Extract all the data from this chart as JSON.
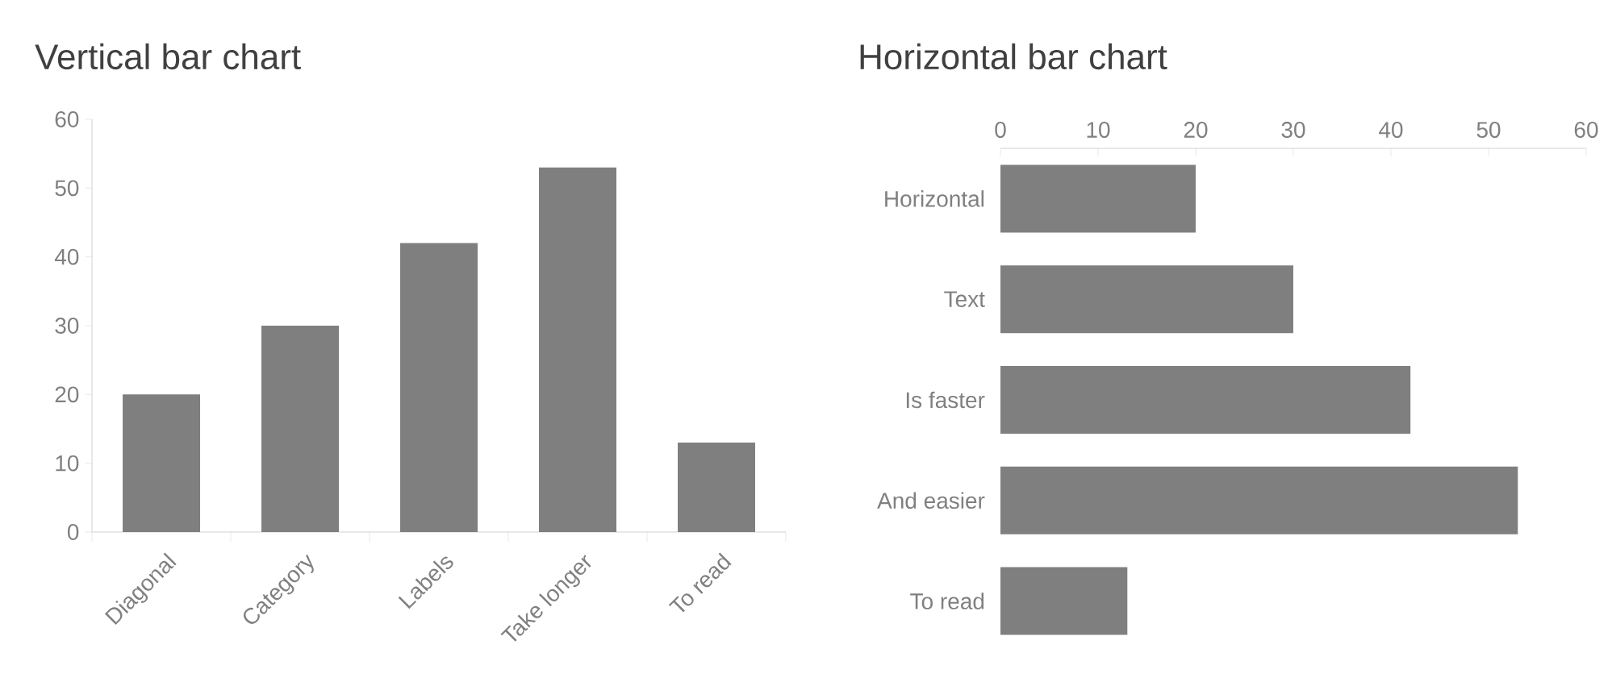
{
  "chart_data": [
    {
      "type": "bar",
      "title": "Vertical bar chart",
      "categories": [
        "Diagonal",
        "Category",
        "Labels",
        "Take longer",
        "To read"
      ],
      "values": [
        20,
        30,
        42,
        53,
        13
      ],
      "color": "#7f7f7f",
      "ylim": [
        0,
        60
      ],
      "yticks": [
        0,
        10,
        20,
        30,
        40,
        50,
        60
      ]
    },
    {
      "type": "bar",
      "orientation": "horizontal",
      "title": "Horizontal bar chart",
      "categories": [
        "Horizontal",
        "Text",
        "Is faster",
        "And easier",
        "To read"
      ],
      "values": [
        20,
        30,
        42,
        53,
        13
      ],
      "color": "#7f7f7f",
      "xlim": [
        0,
        60
      ],
      "xticks": [
        0,
        10,
        20,
        30,
        40,
        50,
        60
      ]
    }
  ]
}
